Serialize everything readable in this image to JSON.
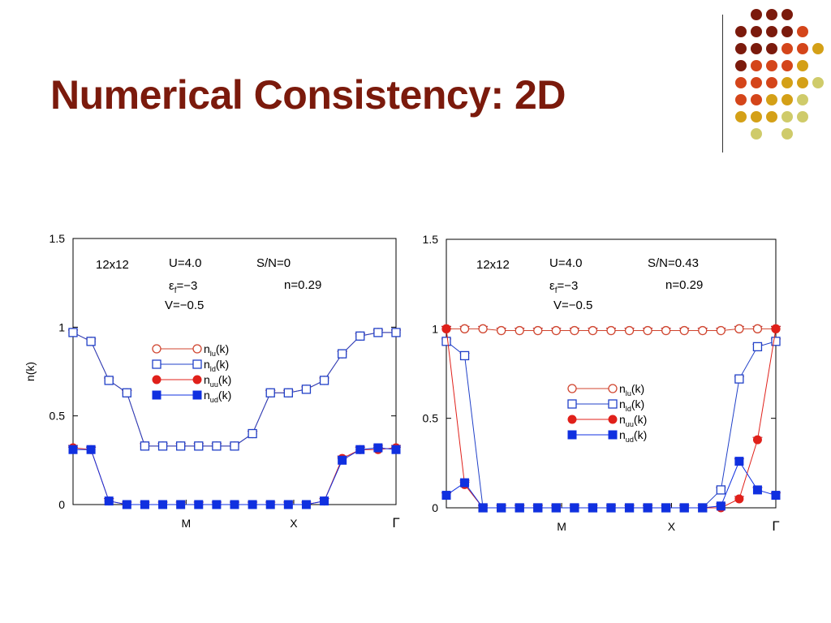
{
  "slide": {
    "title": "Numerical Consistency: 2D",
    "colors": {
      "title": "#7b1a0c",
      "dot_dark": "#7b1a0c",
      "dot_orange": "#d4451a",
      "dot_gold": "#d4a017",
      "dot_khaki": "#cfcb6a"
    }
  },
  "decoration": {
    "dot_grid_rows": [
      [
        "",
        "dot_dark",
        "dot_dark",
        "dot_dark",
        "",
        ""
      ],
      [
        "dot_dark",
        "dot_dark",
        "dot_dark",
        "dot_dark",
        "dot_orange",
        ""
      ],
      [
        "dot_dark",
        "dot_dark",
        "dot_dark",
        "dot_orange",
        "dot_orange",
        "dot_gold"
      ],
      [
        "dot_dark",
        "dot_orange",
        "dot_orange",
        "dot_orange",
        "dot_gold",
        ""
      ],
      [
        "dot_orange",
        "dot_orange",
        "dot_orange",
        "dot_gold",
        "dot_gold",
        "dot_khaki"
      ],
      [
        "dot_orange",
        "dot_orange",
        "dot_gold",
        "dot_gold",
        "dot_khaki",
        ""
      ],
      [
        "dot_gold",
        "dot_gold",
        "dot_gold",
        "dot_khaki",
        "dot_khaki",
        ""
      ],
      [
        "",
        "dot_khaki",
        "",
        "dot_khaki",
        "",
        ""
      ]
    ]
  },
  "chart_data": [
    {
      "type": "line",
      "ylabel": "n(k)",
      "ylim": [
        0,
        1.5
      ],
      "yticks": [
        "0",
        "0.5",
        "1",
        "1.5"
      ],
      "xtick_labels": [
        {
          "label": "M",
          "index": 6.3
        },
        {
          "label": "X",
          "index": 12.3
        },
        {
          "label": "Γ",
          "index": 18
        }
      ],
      "annotations": [
        "12x12",
        "U=4.0",
        "ε_f=−3",
        "V=−0.5",
        "S/N=0",
        "n=0.29"
      ],
      "legend": {
        "placement": "center"
      },
      "grid": false,
      "x": [
        0,
        1,
        2,
        3,
        4,
        5,
        6,
        7,
        8,
        9,
        10,
        11,
        12,
        13,
        14,
        15,
        16,
        17,
        18
      ],
      "series": [
        {
          "name": "n_lu(k)",
          "color": "#d0452f",
          "marker": "circle-open",
          "values": [
            0.97,
            0.92,
            0.7,
            0.63,
            0.33,
            0.33,
            0.33,
            0.33,
            0.33,
            0.33,
            0.4,
            0.63,
            0.63,
            0.65,
            0.7,
            0.85,
            0.95,
            0.97,
            0.97
          ]
        },
        {
          "name": "n_ld(k)",
          "color": "#2040c8",
          "marker": "square-open",
          "values": [
            0.97,
            0.92,
            0.7,
            0.63,
            0.33,
            0.33,
            0.33,
            0.33,
            0.33,
            0.33,
            0.4,
            0.63,
            0.63,
            0.65,
            0.7,
            0.85,
            0.95,
            0.97,
            0.97
          ]
        },
        {
          "name": "n_uu(k)",
          "color": "#e0201a",
          "marker": "circle-filled",
          "values": [
            0.32,
            0.31,
            0.02,
            0.0,
            0.0,
            0.0,
            0.0,
            0.0,
            0.0,
            0.0,
            0.0,
            0.0,
            0.0,
            0.0,
            0.02,
            0.26,
            0.31,
            0.31,
            0.32
          ]
        },
        {
          "name": "n_ud(k)",
          "color": "#1030e0",
          "marker": "square-filled",
          "values": [
            0.31,
            0.31,
            0.02,
            0.0,
            0.0,
            0.0,
            0.0,
            0.0,
            0.0,
            0.0,
            0.0,
            0.0,
            0.0,
            0.0,
            0.02,
            0.25,
            0.31,
            0.32,
            0.31
          ]
        }
      ]
    },
    {
      "type": "line",
      "ylabel": "n(k)",
      "ylim": [
        0,
        1.5
      ],
      "yticks": [
        "0",
        "0.5",
        "1",
        "1.5"
      ],
      "xtick_labels": [
        {
          "label": "M",
          "index": 6.3
        },
        {
          "label": "X",
          "index": 12.3
        },
        {
          "label": "Γ",
          "index": 18
        }
      ],
      "annotations": [
        "12x12",
        "U=4.0",
        "ε_f=−3",
        "V=−0.5",
        "S/N=0.43",
        "n=0.29"
      ],
      "legend": {
        "placement": "center"
      },
      "grid": false,
      "x": [
        0,
        1,
        2,
        3,
        4,
        5,
        6,
        7,
        8,
        9,
        10,
        11,
        12,
        13,
        14,
        15,
        16,
        17,
        18
      ],
      "series": [
        {
          "name": "n_lu(k)",
          "color": "#d0452f",
          "marker": "circle-open",
          "values": [
            1.0,
            1.0,
            1.0,
            0.99,
            0.99,
            0.99,
            0.99,
            0.99,
            0.99,
            0.99,
            0.99,
            0.99,
            0.99,
            0.99,
            0.99,
            0.99,
            1.0,
            1.0,
            1.0
          ]
        },
        {
          "name": "n_ld(k)",
          "color": "#2040c8",
          "marker": "square-open",
          "values": [
            0.93,
            0.85,
            0.0,
            0.0,
            0.0,
            0.0,
            0.0,
            0.0,
            0.0,
            0.0,
            0.0,
            0.0,
            0.0,
            0.0,
            0.0,
            0.1,
            0.72,
            0.9,
            0.93
          ]
        },
        {
          "name": "n_uu(k)",
          "color": "#e0201a",
          "marker": "circle-filled",
          "values": [
            1.0,
            0.13,
            0.0,
            0.0,
            0.0,
            0.0,
            0.0,
            0.0,
            0.0,
            0.0,
            0.0,
            0.0,
            0.0,
            0.0,
            0.0,
            0.0,
            0.05,
            0.38,
            1.0
          ]
        },
        {
          "name": "n_ud(k)",
          "color": "#1030e0",
          "marker": "square-filled",
          "values": [
            0.07,
            0.14,
            0.0,
            0.0,
            0.0,
            0.0,
            0.0,
            0.0,
            0.0,
            0.0,
            0.0,
            0.0,
            0.0,
            0.0,
            0.0,
            0.01,
            0.26,
            0.1,
            0.07
          ]
        }
      ]
    }
  ]
}
